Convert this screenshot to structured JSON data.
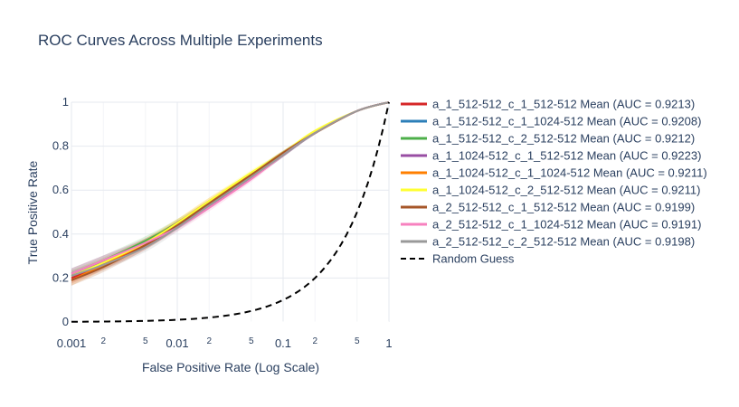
{
  "chart_data": {
    "type": "line",
    "title": "ROC Curves Across Multiple Experiments",
    "xlabel": "False Positive Rate (Log Scale)",
    "ylabel": "True Positive Rate",
    "x_scale": "log",
    "xlim": [
      0.001,
      1
    ],
    "ylim": [
      0,
      1
    ],
    "grid": true,
    "legend_position": "right",
    "x_ticks": [
      {
        "value": 0.001,
        "label": "0.001",
        "major": true
      },
      {
        "value": 0.002,
        "label": "2",
        "major": false
      },
      {
        "value": 0.005,
        "label": "5",
        "major": false
      },
      {
        "value": 0.01,
        "label": "0.01",
        "major": true
      },
      {
        "value": 0.02,
        "label": "2",
        "major": false
      },
      {
        "value": 0.05,
        "label": "5",
        "major": false
      },
      {
        "value": 0.1,
        "label": "0.1",
        "major": true
      },
      {
        "value": 0.2,
        "label": "2",
        "major": false
      },
      {
        "value": 0.5,
        "label": "5",
        "major": false
      },
      {
        "value": 1,
        "label": "1",
        "major": true
      }
    ],
    "y_ticks": [
      {
        "value": 0,
        "label": "0"
      },
      {
        "value": 0.2,
        "label": "0.2"
      },
      {
        "value": 0.4,
        "label": "0.4"
      },
      {
        "value": 0.6,
        "label": "0.6"
      },
      {
        "value": 0.8,
        "label": "0.8"
      },
      {
        "value": 1,
        "label": "1"
      }
    ],
    "x": [
      0.001,
      0.002,
      0.005,
      0.01,
      0.02,
      0.05,
      0.1,
      0.2,
      0.5,
      1
    ],
    "series": [
      {
        "name": "a_1_512-512_c_1_512-512 Mean (AUC = 0.9213)",
        "color": "#d62728",
        "values": [
          0.2,
          0.26,
          0.35,
          0.44,
          0.53,
          0.66,
          0.76,
          0.86,
          0.96,
          1.0
        ],
        "band": 0.03
      },
      {
        "name": "a_1_512-512_c_1_1024-512 Mean (AUC = 0.9208)",
        "color": "#2c7fb8",
        "values": [
          0.21,
          0.27,
          0.36,
          0.44,
          0.53,
          0.66,
          0.76,
          0.86,
          0.96,
          1.0
        ],
        "band": 0.03
      },
      {
        "name": "a_1_512-512_c_2_512-512 Mean (AUC = 0.9212)",
        "color": "#4daf4a",
        "values": [
          0.22,
          0.28,
          0.37,
          0.45,
          0.54,
          0.67,
          0.77,
          0.86,
          0.96,
          1.0
        ],
        "band": 0.03
      },
      {
        "name": "a_1_1024-512_c_1_512-512 Mean (AUC = 0.9223)",
        "color": "#984ea3",
        "values": [
          0.22,
          0.28,
          0.36,
          0.44,
          0.53,
          0.66,
          0.76,
          0.86,
          0.96,
          1.0
        ],
        "band": 0.03
      },
      {
        "name": "a_1_1024-512_c_1_1024-512 Mean (AUC = 0.9211)",
        "color": "#ff7f00",
        "values": [
          0.19,
          0.26,
          0.36,
          0.45,
          0.55,
          0.67,
          0.77,
          0.86,
          0.96,
          1.0
        ],
        "band": 0.03
      },
      {
        "name": "a_1_1024-512_c_2_512-512 Mean (AUC = 0.9211)",
        "color": "#ffff33",
        "values": [
          0.21,
          0.27,
          0.36,
          0.45,
          0.55,
          0.68,
          0.77,
          0.87,
          0.96,
          1.0
        ],
        "band": 0.03
      },
      {
        "name": "a_2_512-512_c_1_512-512 Mean (AUC = 0.9199)",
        "color": "#a65628",
        "values": [
          0.19,
          0.25,
          0.35,
          0.44,
          0.54,
          0.67,
          0.77,
          0.86,
          0.96,
          1.0
        ],
        "band": 0.03
      },
      {
        "name": "a_2_512-512_c_1_1024-512 Mean (AUC = 0.9191)",
        "color": "#f781bf",
        "values": [
          0.22,
          0.28,
          0.36,
          0.43,
          0.52,
          0.65,
          0.76,
          0.86,
          0.96,
          1.0
        ],
        "band": 0.03
      },
      {
        "name": "a_2_512-512_c_2_512-512 Mean (AUC = 0.9198)",
        "color": "#999999",
        "values": [
          0.21,
          0.26,
          0.34,
          0.43,
          0.53,
          0.66,
          0.76,
          0.86,
          0.96,
          1.0
        ],
        "band": 0.03
      }
    ],
    "reference_line": {
      "name": "Random Guess",
      "color": "#000000",
      "style": "dash",
      "note_values": "y = x"
    }
  }
}
